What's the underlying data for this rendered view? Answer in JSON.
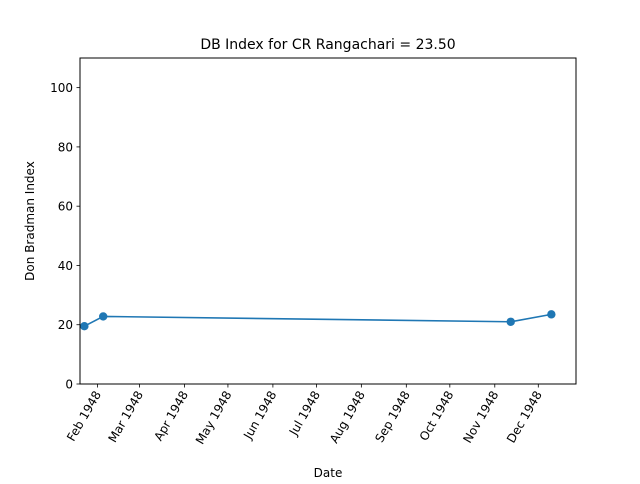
{
  "chart_data": {
    "type": "line",
    "title": "DB Index for CR Rangachari = 23.50",
    "xlabel": "Date",
    "ylabel": "Don Bradman Index",
    "xlim": [
      "1948-01-20",
      "1948-12-27"
    ],
    "ylim": [
      0,
      110
    ],
    "x_ticks": [
      {
        "date": "1948-02-01",
        "label": "Feb 1948"
      },
      {
        "date": "1948-03-01",
        "label": "Mar 1948"
      },
      {
        "date": "1948-04-01",
        "label": "Apr 1948"
      },
      {
        "date": "1948-05-01",
        "label": "May 1948"
      },
      {
        "date": "1948-06-01",
        "label": "Jun 1948"
      },
      {
        "date": "1948-07-01",
        "label": "Jul 1948"
      },
      {
        "date": "1948-08-01",
        "label": "Aug 1948"
      },
      {
        "date": "1948-09-01",
        "label": "Sep 1948"
      },
      {
        "date": "1948-10-01",
        "label": "Oct 1948"
      },
      {
        "date": "1948-11-01",
        "label": "Nov 1948"
      },
      {
        "date": "1948-12-01",
        "label": "Dec 1948"
      }
    ],
    "y_ticks": [
      0,
      20,
      40,
      60,
      80,
      100
    ],
    "grid": false,
    "series": [
      {
        "color": "#1f77b4",
        "x": [
          "1948-01-23",
          "1948-02-05",
          "1948-11-12",
          "1948-12-10"
        ],
        "y": [
          19.5,
          22.8,
          21.0,
          23.5
        ]
      }
    ]
  }
}
